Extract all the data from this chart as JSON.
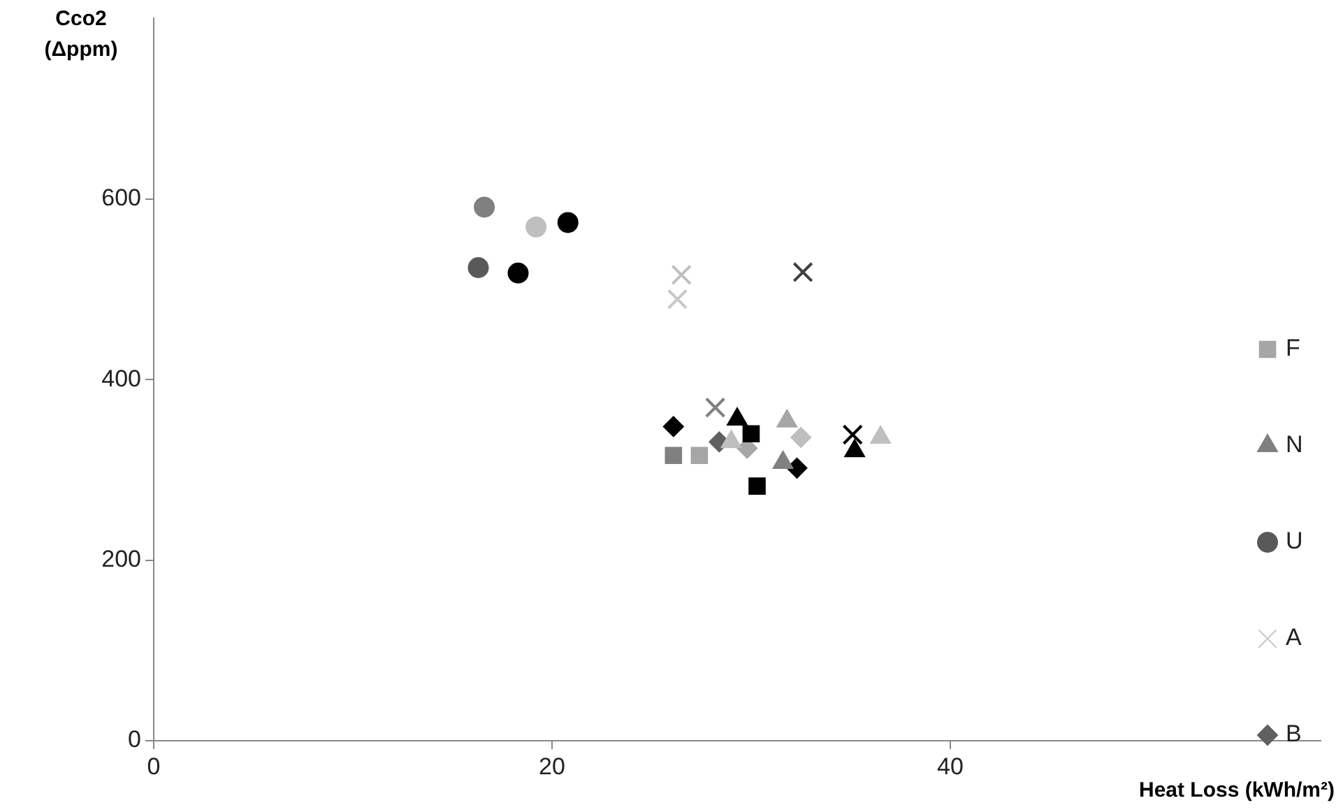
{
  "chart_data": {
    "type": "scatter",
    "xlabel": "Heat Loss (kWh/m²)",
    "ylabel": "Cco2 (Δppm)",
    "xlim": [
      0,
      58.6
    ],
    "xticks": [
      0,
      20,
      40
    ],
    "ylim": [
      0,
      800
    ],
    "yticks": [
      0,
      200,
      400,
      600
    ],
    "grid": false,
    "legend": "right",
    "series": [
      {
        "name": "F",
        "marker": "square",
        "color": "#a6a6a6",
        "x": [
          26.1,
          27.4,
          30.0,
          30.3
        ],
        "values": [
          316,
          316,
          340,
          282
        ],
        "colors": [
          "#808080",
          "#a6a6a6",
          "#000000",
          "#000000"
        ]
      },
      {
        "name": "N",
        "marker": "triangle",
        "color": "#808080",
        "x": [
          29.3,
          29.0,
          31.8,
          31.6,
          35.2,
          36.5
        ],
        "values": [
          356,
          331,
          354,
          308,
          321,
          336
        ],
        "colors": [
          "#000000",
          "#bfbfbf",
          "#a6a6a6",
          "#808080",
          "#000000",
          "#bfbfbf"
        ]
      },
      {
        "name": "U",
        "marker": "circle",
        "color": "#595959",
        "x": [
          16.6,
          19.2,
          20.8,
          16.3,
          18.3
        ],
        "values": [
          591,
          569,
          574,
          524,
          518
        ],
        "colors": [
          "#808080",
          "#bfbfbf",
          "#000000",
          "#595959",
          "#000000"
        ]
      },
      {
        "name": "A",
        "marker": "cross",
        "color": "#c8c8c8",
        "x": [
          26.5,
          26.3,
          32.6,
          28.2,
          35.1
        ],
        "values": [
          516,
          489,
          519,
          369,
          339
        ],
        "colors": [
          "#bfbfbf",
          "#c8c8c8",
          "#404040",
          "#808080",
          "#000000"
        ]
      },
      {
        "name": "B",
        "marker": "diamond",
        "color": "#606060",
        "x": [
          26.1,
          28.4,
          29.8,
          32.5,
          32.3
        ],
        "values": [
          348,
          331,
          324,
          336,
          302
        ],
        "colors": [
          "#000000",
          "#606060",
          "#a6a6a6",
          "#bfbfbf",
          "#000000"
        ]
      }
    ]
  }
}
